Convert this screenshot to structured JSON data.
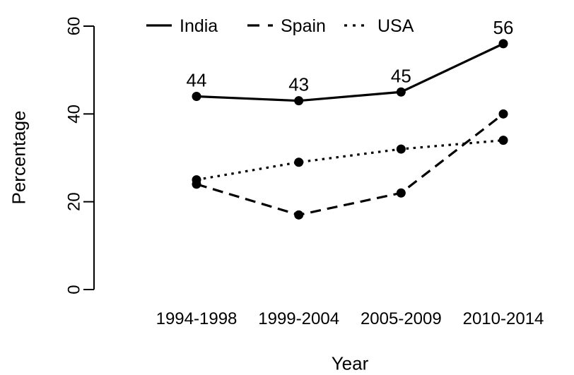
{
  "chart_data": {
    "type": "line",
    "title": "",
    "xlabel": "Year",
    "ylabel": "Percentage",
    "categories": [
      "1994-1998",
      "1999-2004",
      "2005-2009",
      "2010-2014"
    ],
    "y_ticks": [
      0,
      20,
      40,
      60
    ],
    "ylim": [
      0,
      60
    ],
    "grid": false,
    "legend_position": "top",
    "axis_color": "#000000",
    "background_color": "#ffffff",
    "series": [
      {
        "name": "India",
        "line_style": "solid",
        "values": [
          44,
          43,
          45,
          56
        ],
        "point_labels": [
          "44",
          "43",
          "45",
          "56"
        ],
        "color": "#000000"
      },
      {
        "name": "Spain",
        "line_style": "dashed",
        "values": [
          24,
          17,
          22,
          40
        ],
        "point_labels": [],
        "color": "#000000"
      },
      {
        "name": "USA",
        "line_style": "dotted",
        "values": [
          25,
          29,
          32,
          34
        ],
        "point_labels": [],
        "color": "#000000"
      }
    ]
  }
}
